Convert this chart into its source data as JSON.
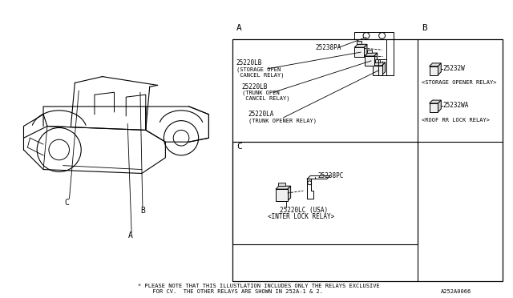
{
  "bg_color": "#ffffff",
  "line_color": "#000000",
  "text_color": "#000000",
  "footnote_line1": "* PLEASE NOTE THAT THIS ILLUSTLATION INCLUDES ONLY THE RELAYS EXCLUSIVE",
  "footnote_line2": "  FOR CV.  THE OTHER RELAYS ARE SHOWN IN 252A-1 & 2.",
  "part_number": "A252A0066",
  "bracket_label_A": "25238PA",
  "part1_num": "25220LB",
  "part1_desc1": "(STORAGE OPEN",
  "part1_desc2": " CANCEL RELAY)",
  "part2_num": "25220LB",
  "part2_desc1": "(TRUNK OPEN",
  "part2_desc2": " CANCEL RELAY)",
  "part3_num": "25220LA",
  "part3_desc1": "(TRUNK OPENER RELAY)",
  "part_B1_num": "25232W",
  "part_B1_desc": "<STORAGE OPENER RELAY>",
  "part_B2_num": "25232WA",
  "part_B2_desc": "<ROOF RR LOCK RELAY>",
  "bracket_label_C": "25238PC",
  "part_C_num": "25220LC (USA)",
  "part_C_desc": "<INTER LOCK RELAY>"
}
